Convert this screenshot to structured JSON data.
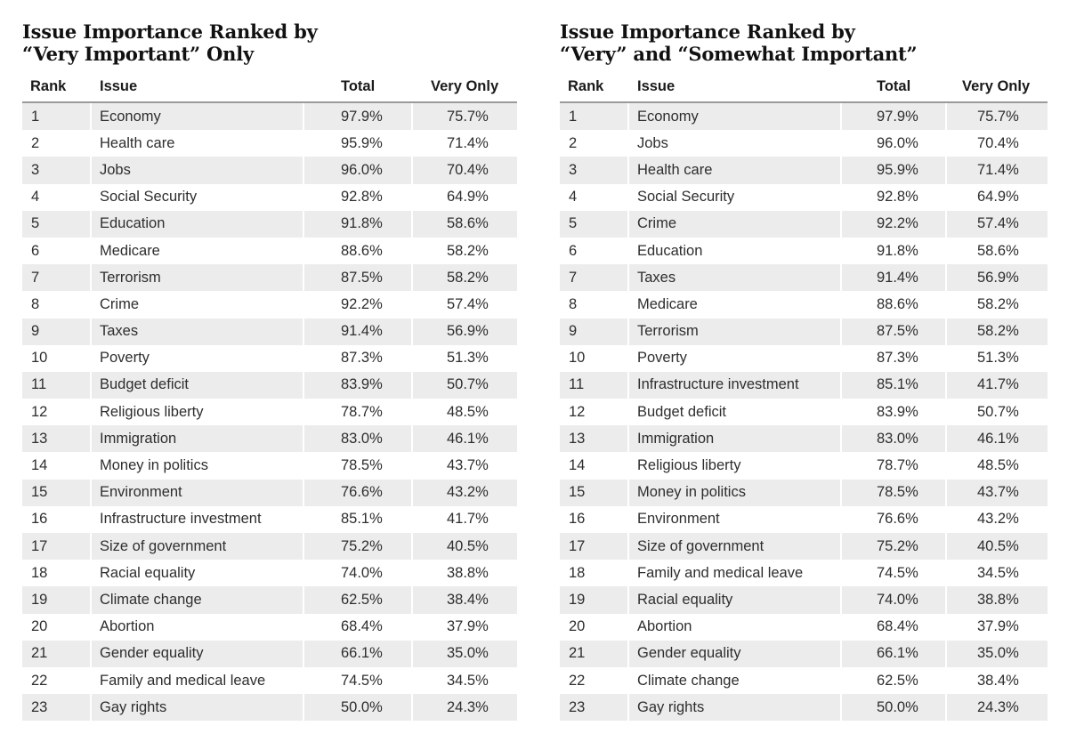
{
  "left_table": {
    "title_line1": "Issue Importance Ranked by",
    "title_line2": "“Very Important” Only",
    "headers": {
      "rank": "Rank",
      "issue": "Issue",
      "total": "Total",
      "very": "Very Only"
    },
    "rows": [
      {
        "rank": "1",
        "issue": "Economy",
        "total": "97.9%",
        "very": "75.7%"
      },
      {
        "rank": "2",
        "issue": "Health care",
        "total": "95.9%",
        "very": "71.4%"
      },
      {
        "rank": "3",
        "issue": "Jobs",
        "total": "96.0%",
        "very": "70.4%"
      },
      {
        "rank": "4",
        "issue": "Social Security",
        "total": "92.8%",
        "very": "64.9%"
      },
      {
        "rank": "5",
        "issue": "Education",
        "total": "91.8%",
        "very": "58.6%"
      },
      {
        "rank": "6",
        "issue": "Medicare",
        "total": "88.6%",
        "very": "58.2%"
      },
      {
        "rank": "7",
        "issue": "Terrorism",
        "total": "87.5%",
        "very": "58.2%"
      },
      {
        "rank": "8",
        "issue": "Crime",
        "total": "92.2%",
        "very": "57.4%"
      },
      {
        "rank": "9",
        "issue": "Taxes",
        "total": "91.4%",
        "very": "56.9%"
      },
      {
        "rank": "10",
        "issue": "Poverty",
        "total": "87.3%",
        "very": "51.3%"
      },
      {
        "rank": "11",
        "issue": "Budget deficit",
        "total": "83.9%",
        "very": "50.7%"
      },
      {
        "rank": "12",
        "issue": "Religious liberty",
        "total": "78.7%",
        "very": "48.5%"
      },
      {
        "rank": "13",
        "issue": "Immigration",
        "total": "83.0%",
        "very": "46.1%"
      },
      {
        "rank": "14",
        "issue": "Money in politics",
        "total": "78.5%",
        "very": "43.7%"
      },
      {
        "rank": "15",
        "issue": "Environment",
        "total": "76.6%",
        "very": "43.2%"
      },
      {
        "rank": "16",
        "issue": "Infrastructure investment",
        "total": "85.1%",
        "very": "41.7%"
      },
      {
        "rank": "17",
        "issue": "Size of government",
        "total": "75.2%",
        "very": "40.5%"
      },
      {
        "rank": "18",
        "issue": "Racial equality",
        "total": "74.0%",
        "very": "38.8%"
      },
      {
        "rank": "19",
        "issue": "Climate change",
        "total": "62.5%",
        "very": "38.4%"
      },
      {
        "rank": "20",
        "issue": "Abortion",
        "total": "68.4%",
        "very": "37.9%"
      },
      {
        "rank": "21",
        "issue": "Gender equality",
        "total": "66.1%",
        "very": "35.0%"
      },
      {
        "rank": "22",
        "issue": "Family and medical leave",
        "total": "74.5%",
        "very": "34.5%"
      },
      {
        "rank": "23",
        "issue": "Gay rights",
        "total": "50.0%",
        "very": "24.3%"
      }
    ]
  },
  "right_table": {
    "title_line1": "Issue Importance Ranked by",
    "title_line2": "“Very” and “Somewhat Important”",
    "headers": {
      "rank": "Rank",
      "issue": "Issue",
      "total": "Total",
      "very": "Very Only"
    },
    "rows": [
      {
        "rank": "1",
        "issue": "Economy",
        "total": "97.9%",
        "very": "75.7%"
      },
      {
        "rank": "2",
        "issue": "Jobs",
        "total": "96.0%",
        "very": "70.4%"
      },
      {
        "rank": "3",
        "issue": "Health care",
        "total": "95.9%",
        "very": "71.4%"
      },
      {
        "rank": "4",
        "issue": "Social Security",
        "total": "92.8%",
        "very": "64.9%"
      },
      {
        "rank": "5",
        "issue": "Crime",
        "total": "92.2%",
        "very": "57.4%"
      },
      {
        "rank": "6",
        "issue": "Education",
        "total": "91.8%",
        "very": "58.6%"
      },
      {
        "rank": "7",
        "issue": "Taxes",
        "total": "91.4%",
        "very": "56.9%"
      },
      {
        "rank": "8",
        "issue": "Medicare",
        "total": "88.6%",
        "very": "58.2%"
      },
      {
        "rank": "9",
        "issue": "Terrorism",
        "total": "87.5%",
        "very": "58.2%"
      },
      {
        "rank": "10",
        "issue": "Poverty",
        "total": "87.3%",
        "very": "51.3%"
      },
      {
        "rank": "11",
        "issue": "Infrastructure investment",
        "total": "85.1%",
        "very": "41.7%"
      },
      {
        "rank": "12",
        "issue": "Budget deficit",
        "total": "83.9%",
        "very": "50.7%"
      },
      {
        "rank": "13",
        "issue": "Immigration",
        "total": "83.0%",
        "very": "46.1%"
      },
      {
        "rank": "14",
        "issue": "Religious liberty",
        "total": "78.7%",
        "very": "48.5%"
      },
      {
        "rank": "15",
        "issue": "Money in politics",
        "total": "78.5%",
        "very": "43.7%"
      },
      {
        "rank": "16",
        "issue": "Environment",
        "total": "76.6%",
        "very": "43.2%"
      },
      {
        "rank": "17",
        "issue": "Size of government",
        "total": "75.2%",
        "very": "40.5%"
      },
      {
        "rank": "18",
        "issue": "Family and medical leave",
        "total": "74.5%",
        "very": "34.5%"
      },
      {
        "rank": "19",
        "issue": "Racial equality",
        "total": "74.0%",
        "very": "38.8%"
      },
      {
        "rank": "20",
        "issue": "Abortion",
        "total": "68.4%",
        "very": "37.9%"
      },
      {
        "rank": "21",
        "issue": "Gender equality",
        "total": "66.1%",
        "very": "35.0%"
      },
      {
        "rank": "22",
        "issue": "Climate change",
        "total": "62.5%",
        "very": "38.4%"
      },
      {
        "rank": "23",
        "issue": "Gay rights",
        "total": "50.0%",
        "very": "24.3%"
      }
    ]
  }
}
